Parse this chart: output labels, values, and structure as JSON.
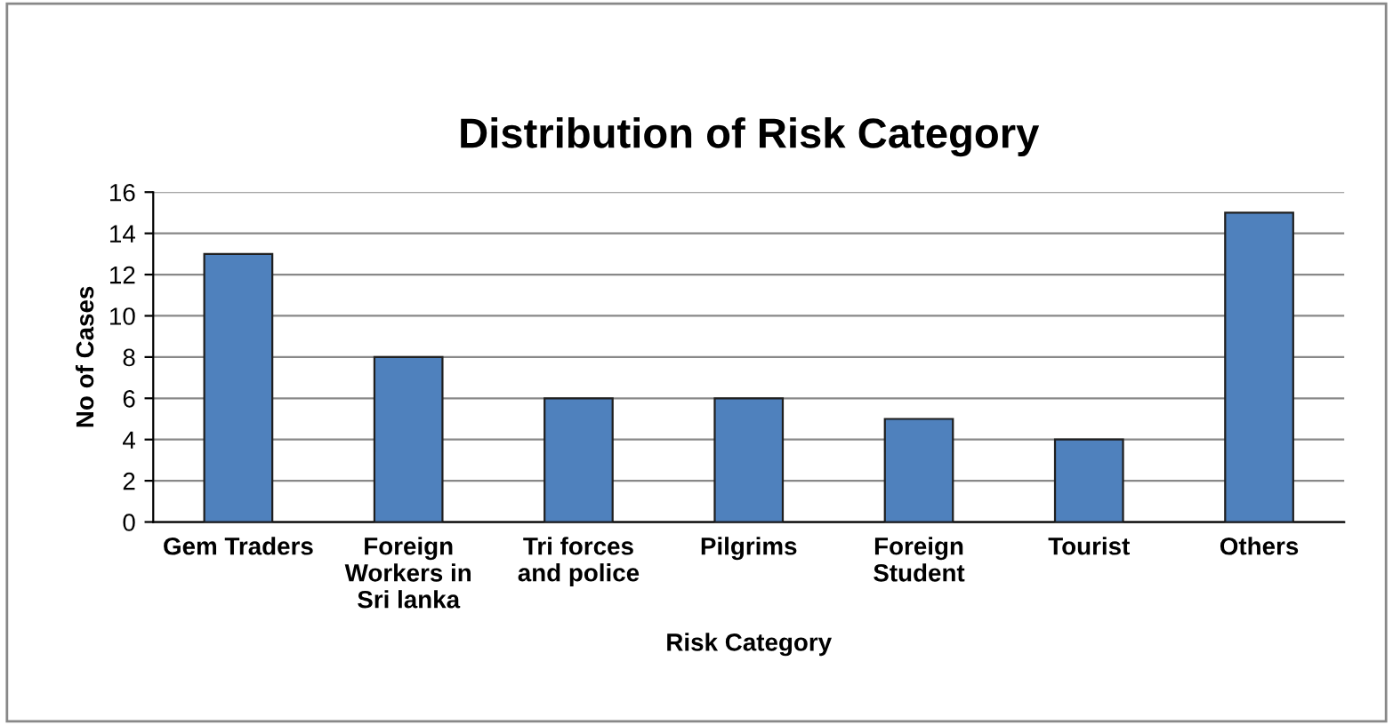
{
  "chart_data": {
    "type": "bar",
    "title": "Distribution of Risk Category",
    "xlabel": "Risk Category",
    "ylabel": "No of Cases",
    "categories": [
      "Gem Traders",
      "Foreign\nWorkers in\nSri lanka",
      "Tri forces\nand police",
      "Pilgrims",
      "Foreign\nStudent",
      "Tourist",
      "Others"
    ],
    "values": [
      13,
      8,
      6,
      6,
      5,
      4,
      15
    ],
    "color": "#4f81bd",
    "ylim": [
      0,
      16
    ],
    "yticks": [
      0,
      2,
      4,
      6,
      8,
      10,
      12,
      14,
      16
    ],
    "grid": "y"
  }
}
